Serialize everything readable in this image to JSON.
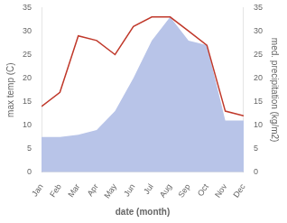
{
  "chart_data": {
    "type": "line",
    "categories": [
      "Jan",
      "Feb",
      "Mar",
      "Apr",
      "May",
      "Jun",
      "Jul",
      "Aug",
      "Sep",
      "Oct",
      "Nov",
      "Dec"
    ],
    "series": [
      {
        "type": "line",
        "color": "#c0392b",
        "values": [
          14,
          17,
          29,
          28,
          25,
          31,
          33,
          33,
          30,
          27,
          13,
          12
        ]
      },
      {
        "type": "area",
        "color": "#b8c4e8",
        "axis": "y2",
        "values": [
          7.5,
          7.5,
          8,
          9,
          13,
          20,
          28,
          33,
          28,
          27,
          11,
          11
        ]
      }
    ],
    "xlabel": "date (month)",
    "ylabel": "max temp (C)",
    "y2label": "med. precipitation (kg/m2)",
    "ylim": [
      0,
      35
    ],
    "yticks": [
      0,
      5,
      10,
      15,
      20,
      25,
      30,
      35
    ],
    "y2lim": [
      0,
      35
    ],
    "y2ticks": [
      0,
      5,
      10,
      15,
      20,
      25,
      30,
      35
    ],
    "grid": false
  }
}
